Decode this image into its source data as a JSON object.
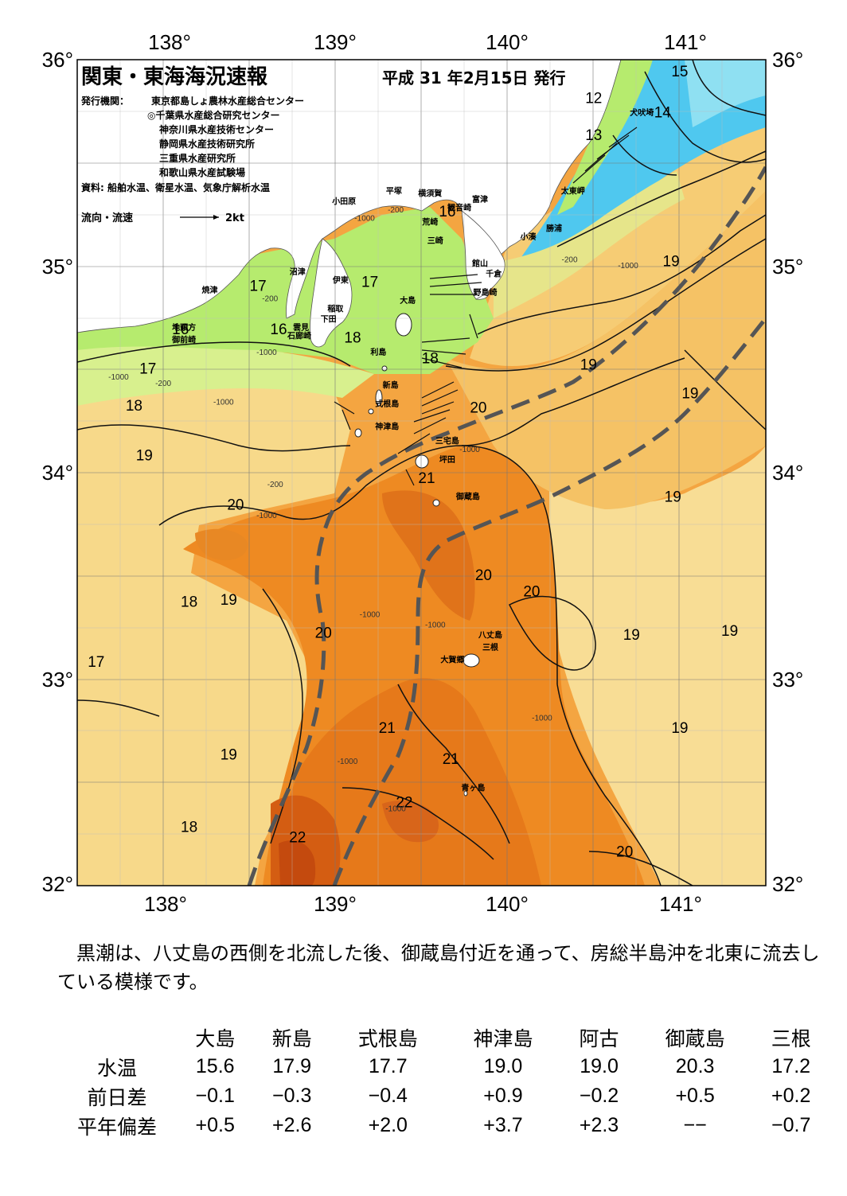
{
  "header": {
    "title": "関東・東海海況速報",
    "date": "平成 31 年2月15日 発行",
    "issuer_label": "発行機関：",
    "issuers": [
      "東京都島しょ農林水産総合センター",
      "◎千葉県水産総合研究センター",
      "神奈川県水産技術センター",
      "静岡県水産技術研究所",
      "三重県水産研究所",
      "和歌山県水産試験場"
    ],
    "source": "資料: 船舶水温、衛星水温、気象庁解析水温",
    "flow_label": "流向・流速",
    "flow_scale": "2kt"
  },
  "axes": {
    "lon_labels": [
      "138°",
      "139°",
      "140°",
      "141°"
    ],
    "lat_labels": [
      "36°",
      "35°",
      "34°",
      "33°",
      "32°"
    ],
    "lon_range": [
      137.5,
      141.5
    ],
    "lat_range": [
      32,
      36
    ]
  },
  "colors": {
    "cold": "#4fc8ef",
    "cool": "#b6eb6e",
    "mild": "#f6d77a",
    "warm": "#f4a541",
    "hot": "#ee8a22",
    "hotter": "#e07215",
    "hottest": "#c8500f",
    "kuroshio_axis": "#555555"
  },
  "isotherm_labels": [
    {
      "t": "15",
      "lon": 141.0,
      "lat": 35.92
    },
    {
      "t": "14",
      "lon": 140.9,
      "lat": 35.72
    },
    {
      "t": "13",
      "lon": 140.5,
      "lat": 35.61
    },
    {
      "t": "12",
      "lon": 140.5,
      "lat": 35.79
    },
    {
      "t": "16",
      "lon": 139.65,
      "lat": 35.24
    },
    {
      "t": "17",
      "lon": 138.55,
      "lat": 34.88
    },
    {
      "t": "17",
      "lon": 139.2,
      "lat": 34.9
    },
    {
      "t": "16",
      "lon": 138.67,
      "lat": 34.67
    },
    {
      "t": "16",
      "lon": 138.1,
      "lat": 34.67
    },
    {
      "t": "18",
      "lon": 139.1,
      "lat": 34.63
    },
    {
      "t": "18",
      "lon": 139.55,
      "lat": 34.53
    },
    {
      "t": "17",
      "lon": 137.91,
      "lat": 34.48
    },
    {
      "t": "18",
      "lon": 137.83,
      "lat": 34.3
    },
    {
      "t": "19",
      "lon": 137.89,
      "lat": 34.06
    },
    {
      "t": "19",
      "lon": 140.47,
      "lat": 34.5
    },
    {
      "t": "19",
      "lon": 140.95,
      "lat": 35.0
    },
    {
      "t": "19",
      "lon": 141.06,
      "lat": 34.36
    },
    {
      "t": "20",
      "lon": 139.83,
      "lat": 34.29
    },
    {
      "t": "21",
      "lon": 139.53,
      "lat": 33.95
    },
    {
      "t": "19",
      "lon": 140.96,
      "lat": 33.86
    },
    {
      "t": "20",
      "lon": 138.42,
      "lat": 33.82
    },
    {
      "t": "20",
      "lon": 139.86,
      "lat": 33.48
    },
    {
      "t": "20",
      "lon": 140.14,
      "lat": 33.4
    },
    {
      "t": "19",
      "lon": 138.38,
      "lat": 33.36
    },
    {
      "t": "18",
      "lon": 138.15,
      "lat": 33.35
    },
    {
      "t": "20",
      "lon": 138.93,
      "lat": 33.2
    },
    {
      "t": "19",
      "lon": 140.72,
      "lat": 33.19
    },
    {
      "t": "19",
      "lon": 141.29,
      "lat": 33.21
    },
    {
      "t": "17",
      "lon": 137.61,
      "lat": 33.06
    },
    {
      "t": "21",
      "lon": 139.3,
      "lat": 32.74
    },
    {
      "t": "19",
      "lon": 141.0,
      "lat": 32.74
    },
    {
      "t": "19",
      "lon": 138.38,
      "lat": 32.61
    },
    {
      "t": "21",
      "lon": 139.67,
      "lat": 32.59
    },
    {
      "t": "22",
      "lon": 139.4,
      "lat": 32.38
    },
    {
      "t": "18",
      "lon": 138.15,
      "lat": 32.26
    },
    {
      "t": "22",
      "lon": 138.78,
      "lat": 32.21
    },
    {
      "t": "20",
      "lon": 140.68,
      "lat": 32.14
    }
  ],
  "depth_labels": [
    {
      "t": "-1000",
      "lon": 139.17,
      "lat": 35.22
    },
    {
      "t": "-200",
      "lon": 139.35,
      "lat": 35.26
    },
    {
      "t": "-1000",
      "lon": 140.7,
      "lat": 34.99
    },
    {
      "t": "-200",
      "lon": 140.36,
      "lat": 35.02
    },
    {
      "t": "-200",
      "lon": 138.62,
      "lat": 34.83
    },
    {
      "t": "-1000",
      "lon": 138.6,
      "lat": 34.57
    },
    {
      "t": "-1000",
      "lon": 137.74,
      "lat": 34.45
    },
    {
      "t": "-200",
      "lon": 138.0,
      "lat": 34.42
    },
    {
      "t": "-1000",
      "lon": 138.35,
      "lat": 34.33
    },
    {
      "t": "-200",
      "lon": 138.65,
      "lat": 33.93
    },
    {
      "t": "-1000",
      "lon": 138.6,
      "lat": 33.78
    },
    {
      "t": "-1000",
      "lon": 139.78,
      "lat": 34.1
    },
    {
      "t": "-1000",
      "lon": 139.2,
      "lat": 33.3
    },
    {
      "t": "-1000",
      "lon": 139.58,
      "lat": 33.25
    },
    {
      "t": "-1000",
      "lon": 140.2,
      "lat": 32.8
    },
    {
      "t": "-1000",
      "lon": 139.07,
      "lat": 32.59
    },
    {
      "t": "-1000",
      "lon": 139.35,
      "lat": 32.36
    }
  ],
  "place_labels": [
    {
      "t": "犬吠埼",
      "lon": 140.78,
      "lat": 35.73
    },
    {
      "t": "太東岬",
      "lon": 140.38,
      "lat": 35.35
    },
    {
      "t": "勝浦",
      "lon": 140.27,
      "lat": 35.17
    },
    {
      "t": "小湊",
      "lon": 140.12,
      "lat": 35.13
    },
    {
      "t": "富津",
      "lon": 139.84,
      "lat": 35.31
    },
    {
      "t": "観音崎",
      "lon": 139.72,
      "lat": 35.27
    },
    {
      "t": "横須賀",
      "lon": 139.55,
      "lat": 35.34
    },
    {
      "t": "平塚",
      "lon": 139.34,
      "lat": 35.35
    },
    {
      "t": "小田原",
      "lon": 139.05,
      "lat": 35.3
    },
    {
      "t": "荒崎",
      "lon": 139.55,
      "lat": 35.2
    },
    {
      "t": "三崎",
      "lon": 139.58,
      "lat": 35.11
    },
    {
      "t": "館山",
      "lon": 139.84,
      "lat": 35.0
    },
    {
      "t": "千倉",
      "lon": 139.92,
      "lat": 34.95
    },
    {
      "t": "野島崎",
      "lon": 139.87,
      "lat": 34.86
    },
    {
      "t": "沼津",
      "lon": 138.78,
      "lat": 34.96
    },
    {
      "t": "伊東",
      "lon": 139.03,
      "lat": 34.92
    },
    {
      "t": "焼津",
      "lon": 138.27,
      "lat": 34.87
    },
    {
      "t": "稲取",
      "lon": 139.0,
      "lat": 34.78
    },
    {
      "t": "下田",
      "lon": 138.96,
      "lat": 34.73
    },
    {
      "t": "雲見",
      "lon": 138.8,
      "lat": 34.69
    },
    {
      "t": "石廊崎",
      "lon": 138.79,
      "lat": 34.65
    },
    {
      "t": "地頭方",
      "lon": 138.12,
      "lat": 34.69
    },
    {
      "t": "御前崎",
      "lon": 138.12,
      "lat": 34.63
    },
    {
      "t": "大島",
      "lon": 139.42,
      "lat": 34.82
    },
    {
      "t": "利島",
      "lon": 139.25,
      "lat": 34.57
    },
    {
      "t": "新島",
      "lon": 139.32,
      "lat": 34.41
    },
    {
      "t": "式根島",
      "lon": 139.3,
      "lat": 34.32
    },
    {
      "t": "神津島",
      "lon": 139.3,
      "lat": 34.21
    },
    {
      "t": "三宅島",
      "lon": 139.65,
      "lat": 34.14
    },
    {
      "t": "坪田",
      "lon": 139.65,
      "lat": 34.05
    },
    {
      "t": "御蔵島",
      "lon": 139.77,
      "lat": 33.87
    },
    {
      "t": "八丈島",
      "lon": 139.9,
      "lat": 33.2
    },
    {
      "t": "三根",
      "lon": 139.9,
      "lat": 33.14
    },
    {
      "t": "大賀郷",
      "lon": 139.68,
      "lat": 33.08
    },
    {
      "t": "青ヶ島",
      "lon": 139.8,
      "lat": 32.46
    }
  ],
  "summary_text": "黒潮は、八丈島の西側を北流した後、御蔵島付近を通って、房総半島沖を北東に流去している模様です。",
  "table": {
    "columns": [
      "大島",
      "新島",
      "式根島",
      "神津島",
      "阿古",
      "御蔵島",
      "三根"
    ],
    "rows": [
      {
        "label": "水温",
        "values": [
          "15.6",
          "17.9",
          "17.7",
          "19.0",
          "19.0",
          "20.3",
          "17.2"
        ]
      },
      {
        "label": "前日差",
        "values": [
          "−0.1",
          "−0.3",
          "−0.4",
          "+0.9",
          "−0.2",
          "+0.5",
          "+0.2"
        ]
      },
      {
        "label": "平年偏差",
        "values": [
          "+0.5",
          "+2.6",
          "+2.0",
          "+3.7",
          "+2.3",
          "−−",
          "−0.7"
        ]
      }
    ]
  }
}
